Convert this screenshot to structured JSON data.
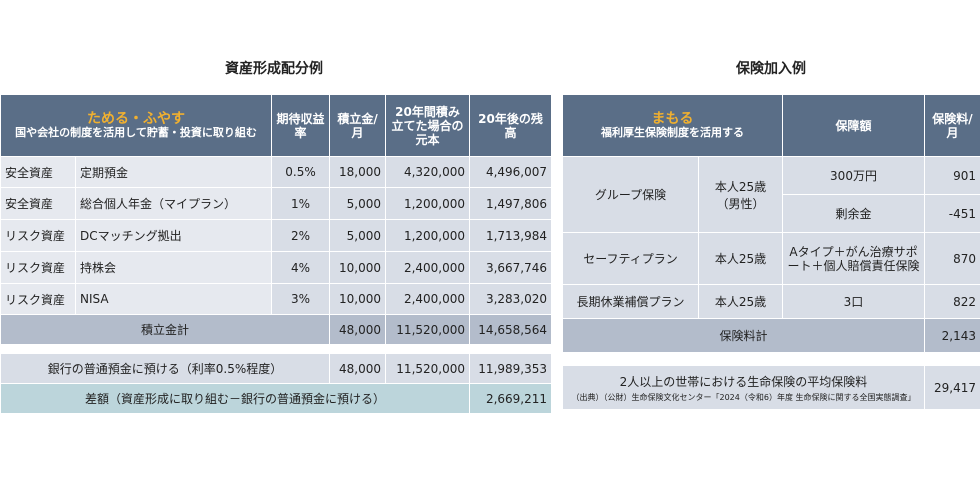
{
  "left": {
    "title": "資産形成配分例",
    "header": {
      "highlight": "ためる・ふやす",
      "sub": "国や会社の制度を活用して貯蓄・投資に取り組む",
      "rate": "期待収益率",
      "monthly": "積立金/月",
      "twenty_year": "20年間積み立てた場合の元本",
      "after": "20年後の残高"
    },
    "rows": [
      {
        "category": "安全資産",
        "item": "定期預金",
        "rate": "0.5%",
        "monthly": "18,000",
        "principal": "4,320,000",
        "balance": "4,496,007"
      },
      {
        "category": "安全資産",
        "item": "総合個人年金（マイプラン）",
        "rate": "1%",
        "monthly": "5,000",
        "principal": "1,200,000",
        "balance": "1,497,806"
      },
      {
        "category": "リスク資産",
        "item": "DCマッチング拠出",
        "rate": "2%",
        "monthly": "5,000",
        "principal": "1,200,000",
        "balance": "1,713,984"
      },
      {
        "category": "リスク資産",
        "item": "持株会",
        "rate": "4%",
        "monthly": "10,000",
        "principal": "2,400,000",
        "balance": "3,667,746"
      },
      {
        "category": "リスク資産",
        "item": "NISA",
        "rate": "3%",
        "monthly": "10,000",
        "principal": "2,400,000",
        "balance": "3,283,020"
      }
    ],
    "total": {
      "label": "積立金計",
      "monthly": "48,000",
      "principal": "11,520,000",
      "balance": "14,658,564"
    },
    "bank": {
      "label": "銀行の普通預金に預ける（利率0.5%程度）",
      "monthly": "48,000",
      "principal": "11,520,000",
      "balance": "11,989,353"
    },
    "diff": {
      "label": "差額（資産形成に取り組む－銀行の普通預金に預ける）",
      "value": "2,669,211"
    }
  },
  "right": {
    "title": "保険加入例",
    "header": {
      "highlight": "まもる",
      "sub": "福利厚生保険制度を活用する",
      "coverage": "保障額",
      "premium": "保険料/月"
    },
    "group": {
      "name": "グループ保険",
      "person": "本人25歳（男性）",
      "c1": "300万円",
      "p1": "901",
      "c2": "剰余金",
      "p2": "-451"
    },
    "safety": {
      "name": "セーフティプラン",
      "person": "本人25歳",
      "coverage": "Aタイプ＋がん治療サポート＋個人賠償責任保険",
      "premium": "870"
    },
    "longterm": {
      "name": "長期休業補償プラン",
      "person": "本人25歳",
      "coverage": "3口",
      "premium": "822"
    },
    "total": {
      "label": "保険料計",
      "value": "2,143"
    },
    "average": {
      "label": "2人以上の世帯における生命保険の平均保険料",
      "source": "（出典）（公財）生命保険文化センター「2024（令和6）年度 生命保険に関する全国実態調査」",
      "value": "29,417"
    }
  }
}
